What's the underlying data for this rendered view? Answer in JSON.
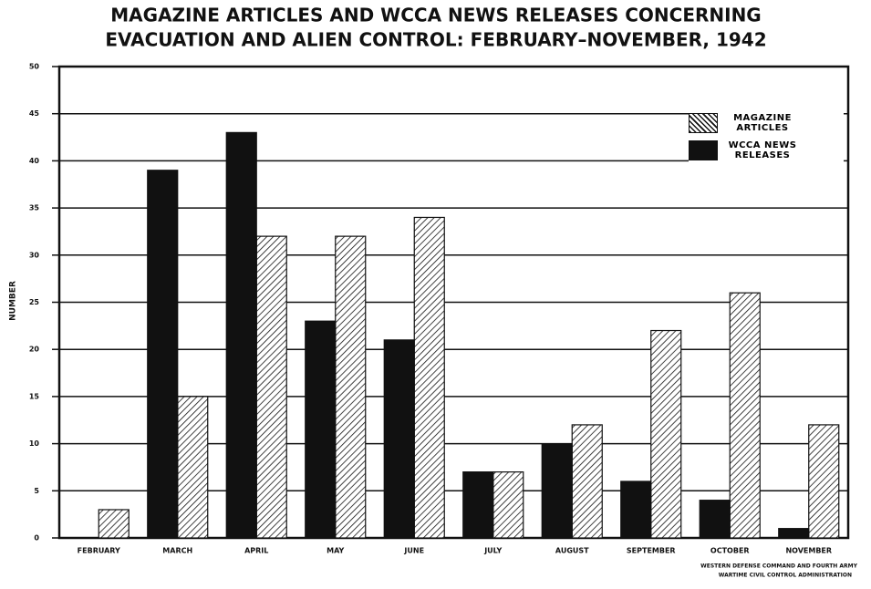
{
  "chart_data": {
    "type": "bar",
    "title": [
      "MAGAZINE ARTICLES AND WCCA NEWS RELEASES CONCERNING",
      "EVACUATION AND ALIEN CONTROL: FEBRUARY–NOVEMBER, 1942"
    ],
    "y_label": "NUMBER",
    "categories": [
      "FEBRUARY",
      "MARCH",
      "APRIL",
      "MAY",
      "JUNE",
      "JULY",
      "AUGUST",
      "SEPTEMBER",
      "OCTOBER",
      "NOVEMBER"
    ],
    "series": [
      {
        "name": "MAGAZINE ARTICLES",
        "color": "hatch",
        "values": [
          3,
          15,
          32,
          32,
          34,
          7,
          12,
          22,
          26,
          12
        ]
      },
      {
        "name": "WCCA NEWS RELEASES",
        "color": "#111111",
        "values": [
          0,
          39,
          43,
          23,
          21,
          7,
          10,
          6,
          4,
          1
        ]
      }
    ],
    "ylim": [
      0,
      50
    ],
    "yticks": [
      0,
      5,
      10,
      15,
      20,
      25,
      30,
      35,
      40,
      45,
      50
    ],
    "grid": true,
    "legend": "upper right",
    "source": [
      "WESTERN DEFENSE COMMAND AND FOURTH ARMY",
      "WARTIME CIVIL CONTROL ADMINISTRATION"
    ]
  }
}
